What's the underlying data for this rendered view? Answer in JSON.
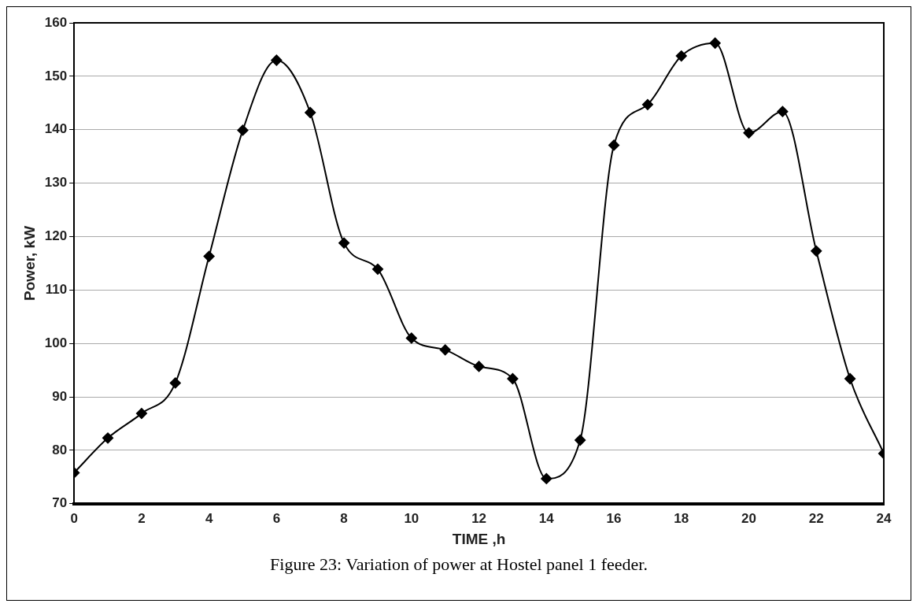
{
  "chart_data": {
    "type": "line",
    "xlabel": "TIME ,h",
    "ylabel": "Power, kW",
    "x": [
      0,
      1,
      2,
      3,
      4,
      5,
      6,
      7,
      8,
      9,
      10,
      11,
      12,
      13,
      14,
      15,
      16,
      17,
      18,
      19,
      20,
      21,
      22,
      23,
      24
    ],
    "series": [
      {
        "color": "#000000",
        "values": [
          75.8,
          82.3,
          86.9,
          92.6,
          116.3,
          139.9,
          153,
          143.2,
          118.8,
          113.9,
          101,
          98.8,
          95.7,
          93.4,
          74.7,
          81.9,
          137.1,
          144.7,
          153.8,
          156.2,
          139.4,
          143.4,
          117.3,
          93.4,
          79.4
        ]
      }
    ],
    "xlim": [
      0,
      24
    ],
    "xticks": [
      0,
      2,
      4,
      6,
      8,
      10,
      12,
      14,
      16,
      18,
      20,
      22,
      24
    ],
    "ylim": [
      70,
      160
    ],
    "yticks": [
      70,
      80,
      90,
      100,
      110,
      120,
      130,
      140,
      150,
      160
    ],
    "grid": "y",
    "legend": false,
    "marker": "diamond",
    "line_style": "solid",
    "annotations": [
      "Figure 23: Variation of power at Hostel panel 1 feeder."
    ]
  }
}
